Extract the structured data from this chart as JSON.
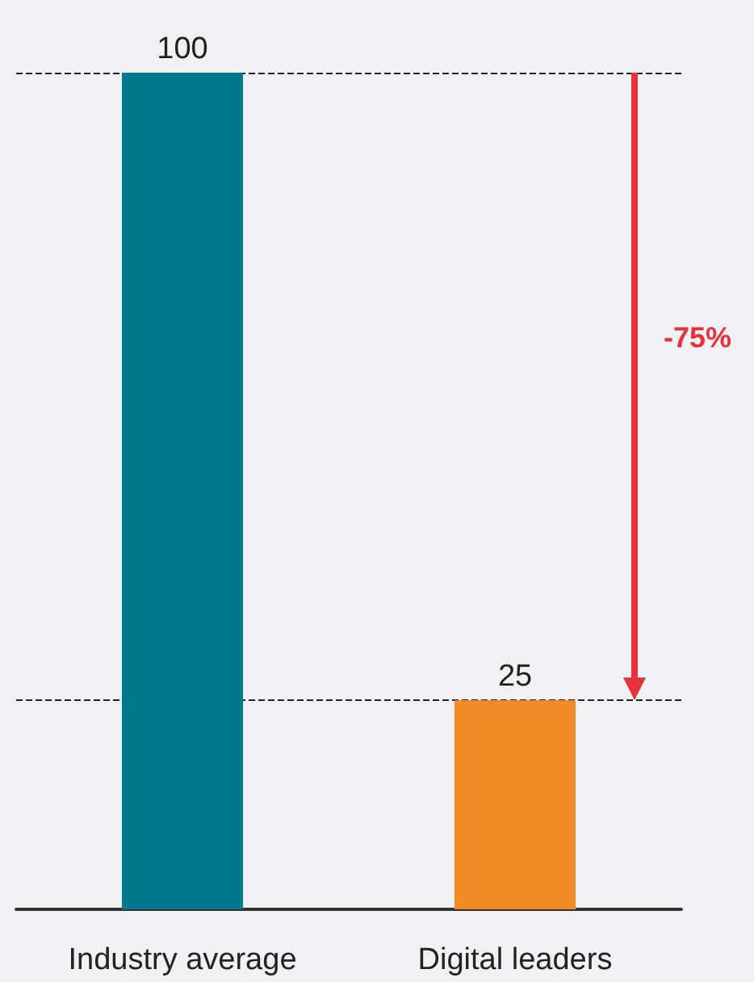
{
  "chart_data": {
    "type": "bar",
    "categories": [
      "Industry average",
      "Digital leaders"
    ],
    "values": [
      100,
      25
    ],
    "colors": [
      "#007a8a",
      "#f28a26"
    ],
    "ylim": [
      0,
      100
    ],
    "data_labels": true,
    "grid": false,
    "tick_labels": "x",
    "ref_lines": [
      {
        "axis": "y",
        "value": 100,
        "line_style": "dashed",
        "color": "#222222"
      },
      {
        "axis": "y",
        "value": 25,
        "line_style": "dashed",
        "color": "#222222"
      }
    ],
    "annotations": [
      "-75%"
    ]
  }
}
